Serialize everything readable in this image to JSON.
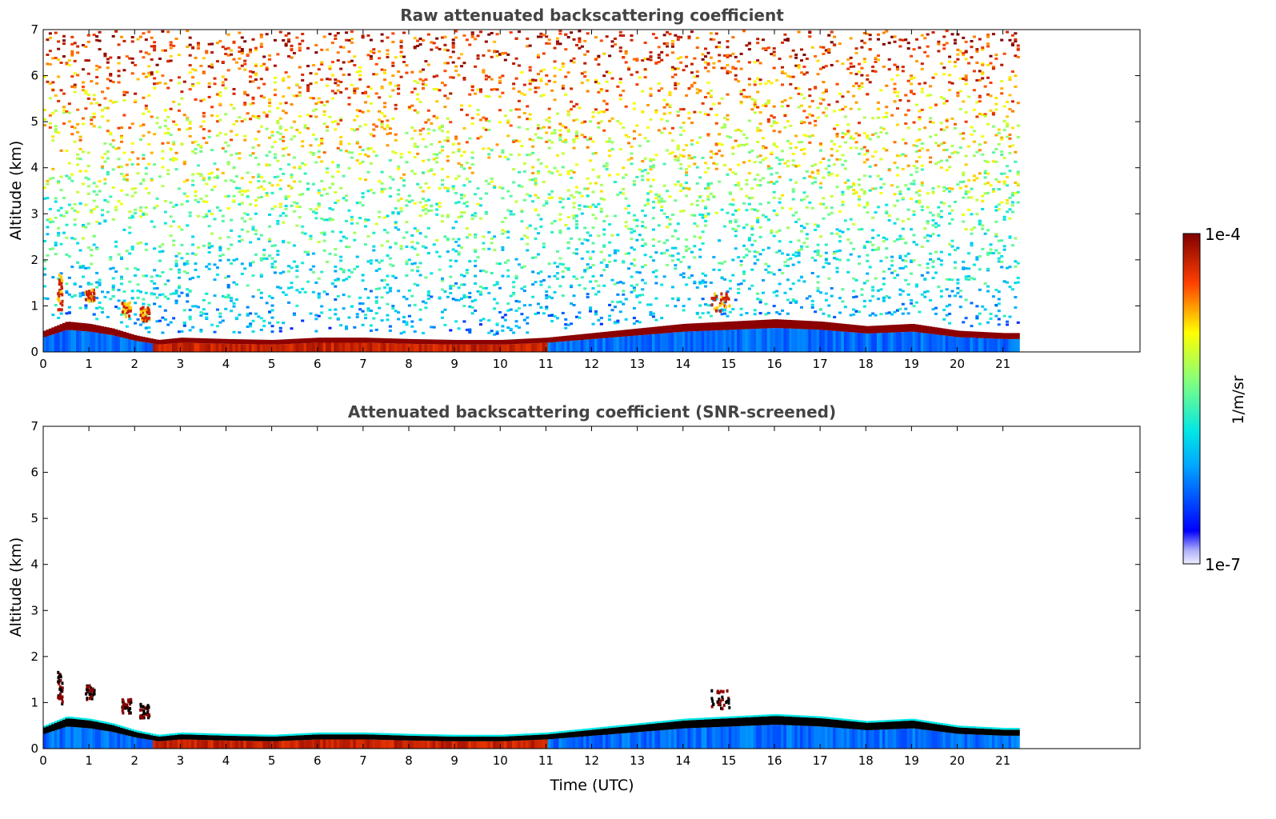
{
  "chart_data": [
    {
      "type": "heatmap",
      "title": "Raw attenuated backscattering coefficient",
      "xlabel": "",
      "ylabel": "Altitude (km)",
      "xlim": [
        0,
        24
      ],
      "ylim": [
        0,
        7
      ],
      "x_ticks": [
        "0",
        "1",
        "2",
        "3",
        "4",
        "5",
        "6",
        "7",
        "8",
        "9",
        "10",
        "11",
        "12",
        "13",
        "14",
        "15",
        "16",
        "17",
        "18",
        "19",
        "20",
        "21"
      ],
      "y_ticks": [
        "0",
        "1",
        "2",
        "3",
        "4",
        "5",
        "6",
        "7"
      ],
      "data_extent_x": [
        0,
        21.3
      ],
      "screened": false,
      "boundary_layer_top_km": [
        [
          0,
          0.4
        ],
        [
          0.5,
          0.6
        ],
        [
          1,
          0.55
        ],
        [
          1.5,
          0.45
        ],
        [
          2,
          0.3
        ],
        [
          2.5,
          0.2
        ],
        [
          3,
          0.25
        ],
        [
          4,
          0.22
        ],
        [
          5,
          0.2
        ],
        [
          6,
          0.25
        ],
        [
          7,
          0.25
        ],
        [
          8,
          0.22
        ],
        [
          9,
          0.2
        ],
        [
          10,
          0.2
        ],
        [
          11,
          0.25
        ],
        [
          12,
          0.35
        ],
        [
          13,
          0.45
        ],
        [
          14,
          0.55
        ],
        [
          15,
          0.6
        ],
        [
          16,
          0.65
        ],
        [
          17,
          0.6
        ],
        [
          18,
          0.5
        ],
        [
          19,
          0.55
        ],
        [
          20,
          0.4
        ],
        [
          21,
          0.35
        ],
        [
          21.3,
          0.35
        ]
      ],
      "elevated_features": [
        {
          "x": [
            0.3,
            0.4
          ],
          "y": [
            0.9,
            1.7
          ]
        },
        {
          "x": [
            0.9,
            1.1
          ],
          "y": [
            1.1,
            1.4
          ]
        },
        {
          "x": [
            1.7,
            1.9
          ],
          "y": [
            0.8,
            1.1
          ]
        },
        {
          "x": [
            2.1,
            2.3
          ],
          "y": [
            0.7,
            1.0
          ]
        },
        {
          "x": [
            14.6,
            15.0
          ],
          "y": [
            0.9,
            1.3
          ]
        }
      ]
    },
    {
      "type": "heatmap",
      "title": "Attenuated backscattering coefficient (SNR-screened)",
      "xlabel": "Time (UTC)",
      "ylabel": "Altitude (km)",
      "xlim": [
        0,
        24
      ],
      "ylim": [
        0,
        7
      ],
      "x_ticks": [
        "0",
        "1",
        "2",
        "3",
        "4",
        "5",
        "6",
        "7",
        "8",
        "9",
        "10",
        "11",
        "12",
        "13",
        "14",
        "15",
        "16",
        "17",
        "18",
        "19",
        "20",
        "21"
      ],
      "y_ticks": [
        "0",
        "1",
        "2",
        "3",
        "4",
        "5",
        "6",
        "7"
      ],
      "data_extent_x": [
        0,
        21.3
      ],
      "screened": true
    }
  ],
  "colorbar": {
    "label": "1/m/sr",
    "max_label": "1e-4",
    "min_label": "1e-7",
    "colormap": "jet",
    "scale": "log"
  }
}
